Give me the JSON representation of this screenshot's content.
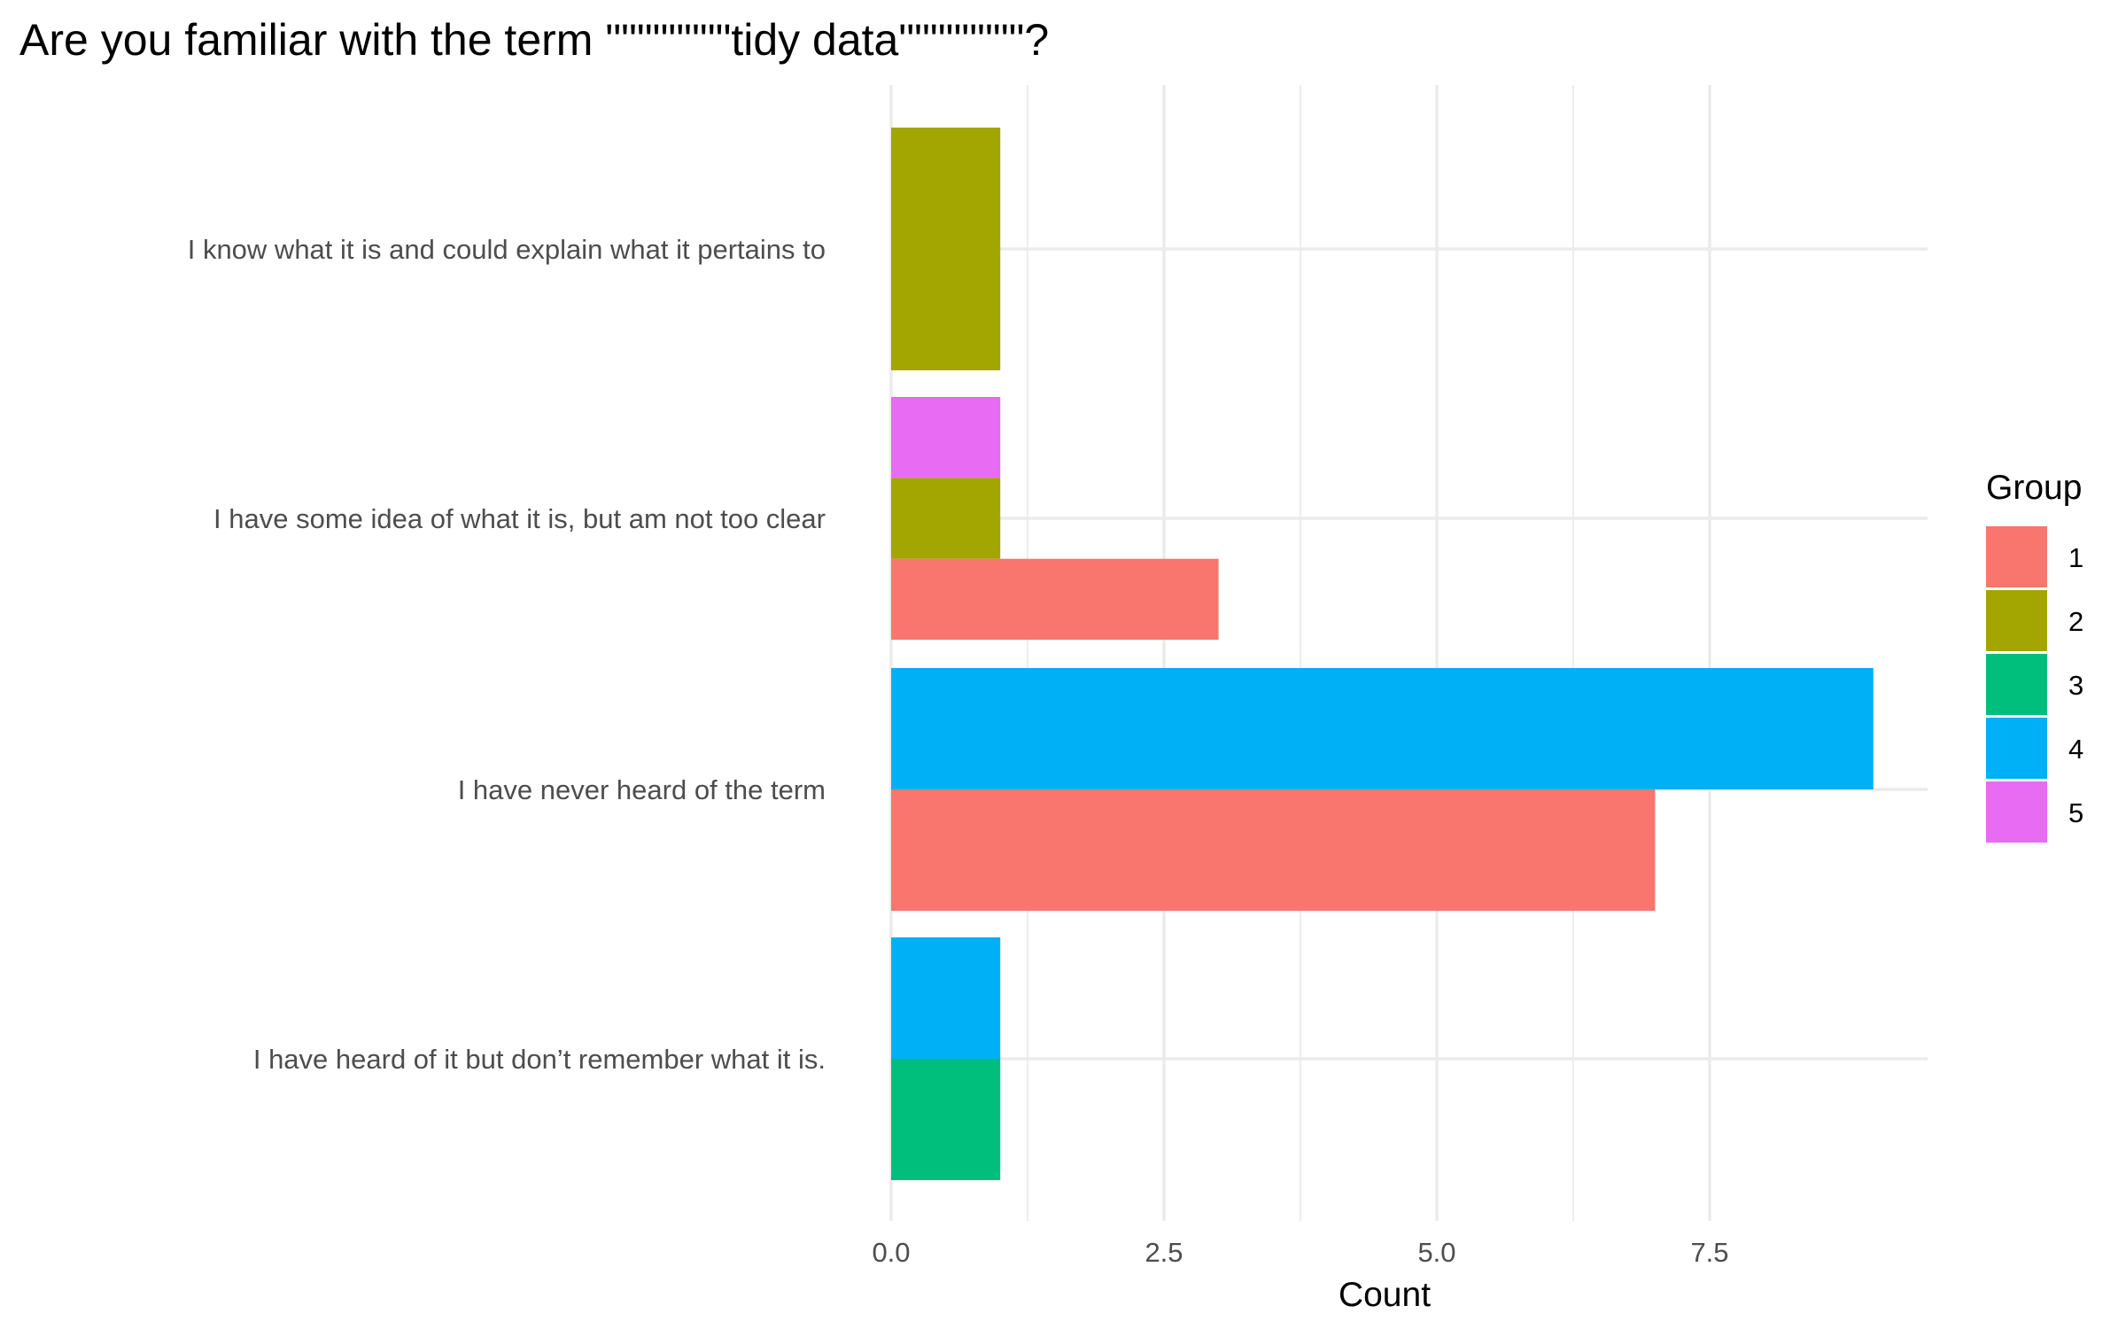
{
  "chart_data": {
    "type": "bar",
    "orientation": "horizontal",
    "position": "dodge",
    "title": "Are you familiar with the term \"\"\"\"\"\"\"\"tidy data\"\"\"\"\"\"\"\"?",
    "xlabel": "Count",
    "ylabel": "",
    "xlim": [
      0,
      9.45
    ],
    "x_ticks": [
      0,
      2.5,
      5,
      7.5
    ],
    "x_tick_labels": [
      "0.0",
      "2.5",
      "5.0",
      "7.5"
    ],
    "grid": true,
    "legend": {
      "title": "Group",
      "position": "right"
    },
    "categories": [
      "I have heard of it but don’t remember what it is.",
      "I have never heard of the term",
      "I have some idea of what it is, but am not too clear",
      "I know what it is and could explain what it pertains to"
    ],
    "series": [
      {
        "name": "1",
        "color": "#F8766D",
        "values": [
          null,
          7,
          3,
          null
        ]
      },
      {
        "name": "2",
        "color": "#A3A500",
        "values": [
          null,
          null,
          1,
          1
        ]
      },
      {
        "name": "3",
        "color": "#00BF7D",
        "values": [
          1,
          null,
          null,
          null
        ]
      },
      {
        "name": "4",
        "color": "#00B0F6",
        "values": [
          1,
          9,
          null,
          null
        ]
      },
      {
        "name": "5",
        "color": "#E76BF3",
        "values": [
          null,
          null,
          1,
          null
        ]
      }
    ]
  }
}
